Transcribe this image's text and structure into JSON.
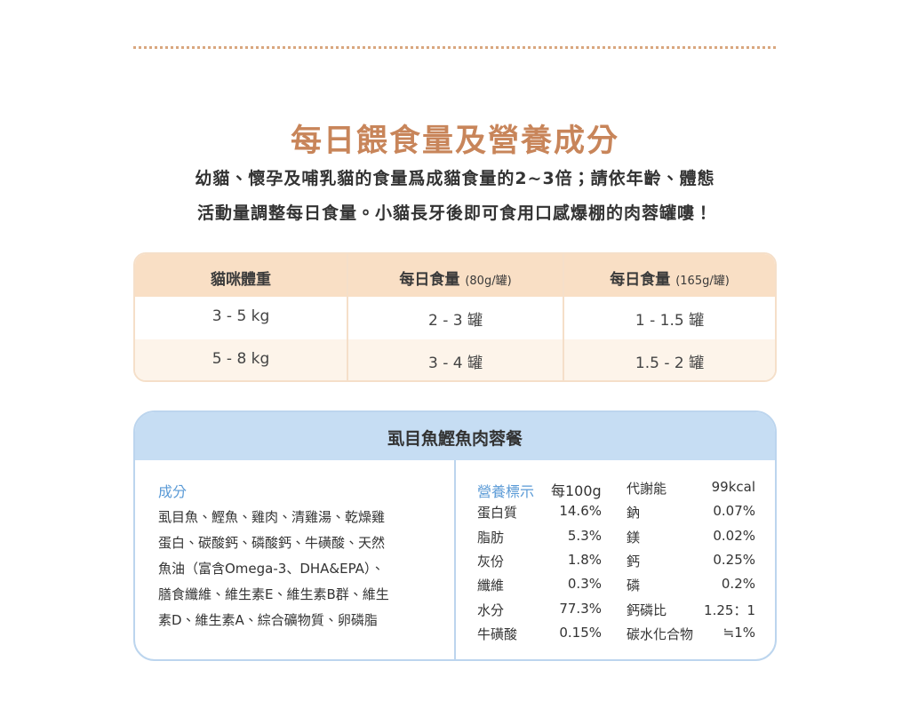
{
  "title": "每日餵食量及營養成分",
  "intro": [
    "幼貓、懷孕及哺乳貓的食量爲成貓食量的2~3倍；請依年齡、體態",
    "活動量調整每日食量。小貓長牙後即可食用口感爆棚的肉蓉罐嘍！"
  ],
  "feeding_table": {
    "headers": [
      {
        "main": "貓咪體重"
      },
      {
        "main": "每日食量",
        "unit": "(80g/罐)"
      },
      {
        "main": "每日食量",
        "unit": "(165g/罐)"
      }
    ],
    "rows": [
      [
        "3 - 5 kg",
        "2 - 3 罐",
        "1 - 1.5 罐"
      ],
      [
        "5 - 8 kg",
        "3 - 4 罐",
        "1.5 - 2 罐"
      ]
    ]
  },
  "nutrition_card": {
    "title": "虱目魚鰹魚肉蓉餐",
    "ingredients": {
      "heading": "成分",
      "lines": [
        "虱目魚、鰹魚、雞肉、清雞湯、乾燥雞",
        "蛋白、碳酸鈣、磷酸鈣、牛磺酸、天然",
        "魚油（富含Omega-3、DHA&EPA）、",
        "膳食纖維、維生素E、維生素B群、維生",
        "素D、維生素A、綜合礦物質、卵磷脂"
      ]
    },
    "facts": {
      "heading": "營養標示",
      "rows": [
        [
          "每100g",
          "",
          "代謝能",
          "99kcal"
        ],
        [
          "蛋白質",
          "14.6%",
          "鈉",
          "0.07%"
        ],
        [
          "脂肪",
          "5.3%",
          "鎂",
          "0.02%"
        ],
        [
          "灰份",
          "1.8%",
          "鈣",
          "0.25%"
        ],
        [
          "纖維",
          "0.3%",
          "磷",
          "0.2%"
        ],
        [
          "水分",
          "77.3%",
          "鈣磷比",
          "1.25：1"
        ],
        [
          "牛磺酸",
          "0.15%",
          "碳水化合物",
          "≒1%"
        ]
      ]
    }
  }
}
